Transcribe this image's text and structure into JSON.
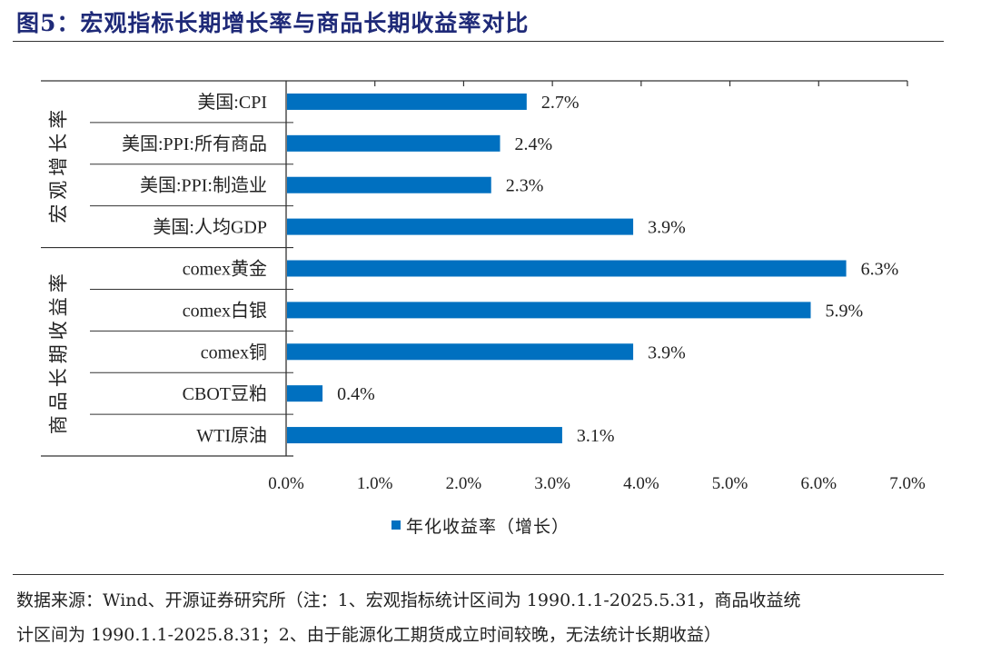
{
  "title": "图5：宏观指标长期增长率与商品长期收益率对比",
  "chart_data": {
    "type": "bar",
    "orientation": "horizontal",
    "groups": [
      {
        "label": "宏观增长率",
        "categories": [
          "美国:CPI",
          "美国:PPI:所有商品",
          "美国:PPI:制造业",
          "美国:人均GDP"
        ]
      },
      {
        "label": "商品长期收益率",
        "categories": [
          "comex黄金",
          "comex白银",
          "comex铜",
          "CBOT豆粕",
          "WTI原油"
        ]
      }
    ],
    "categories": [
      "美国:CPI",
      "美国:PPI:所有商品",
      "美国:PPI:制造业",
      "美国:人均GDP",
      "comex黄金",
      "comex白银",
      "comex铜",
      "CBOT豆粕",
      "WTI原油"
    ],
    "series": [
      {
        "name": "年化收益率（增长）",
        "values": [
          2.7,
          2.4,
          2.3,
          3.9,
          6.3,
          5.9,
          3.9,
          0.4,
          3.1
        ],
        "color": "#0070c0"
      }
    ],
    "data_labels": [
      "2.7%",
      "2.4%",
      "2.3%",
      "3.9%",
      "6.3%",
      "5.9%",
      "3.9%",
      "0.4%",
      "3.1%"
    ],
    "xlim": [
      0,
      7
    ],
    "x_ticks": [
      "0.0%",
      "1.0%",
      "2.0%",
      "3.0%",
      "4.0%",
      "5.0%",
      "6.0%",
      "7.0%"
    ],
    "grid": false,
    "legend_position": "bottom"
  },
  "notes": {
    "line1": "数据来源：Wind、开源证券研究所（注：1、宏观指标统计区间为 1990.1.1-2025.5.31，商品收益统",
    "line2": "计区间为 1990.1.1-2025.8.31；2、由于能源化工期货成立时间较晚，无法统计长期收益）"
  }
}
